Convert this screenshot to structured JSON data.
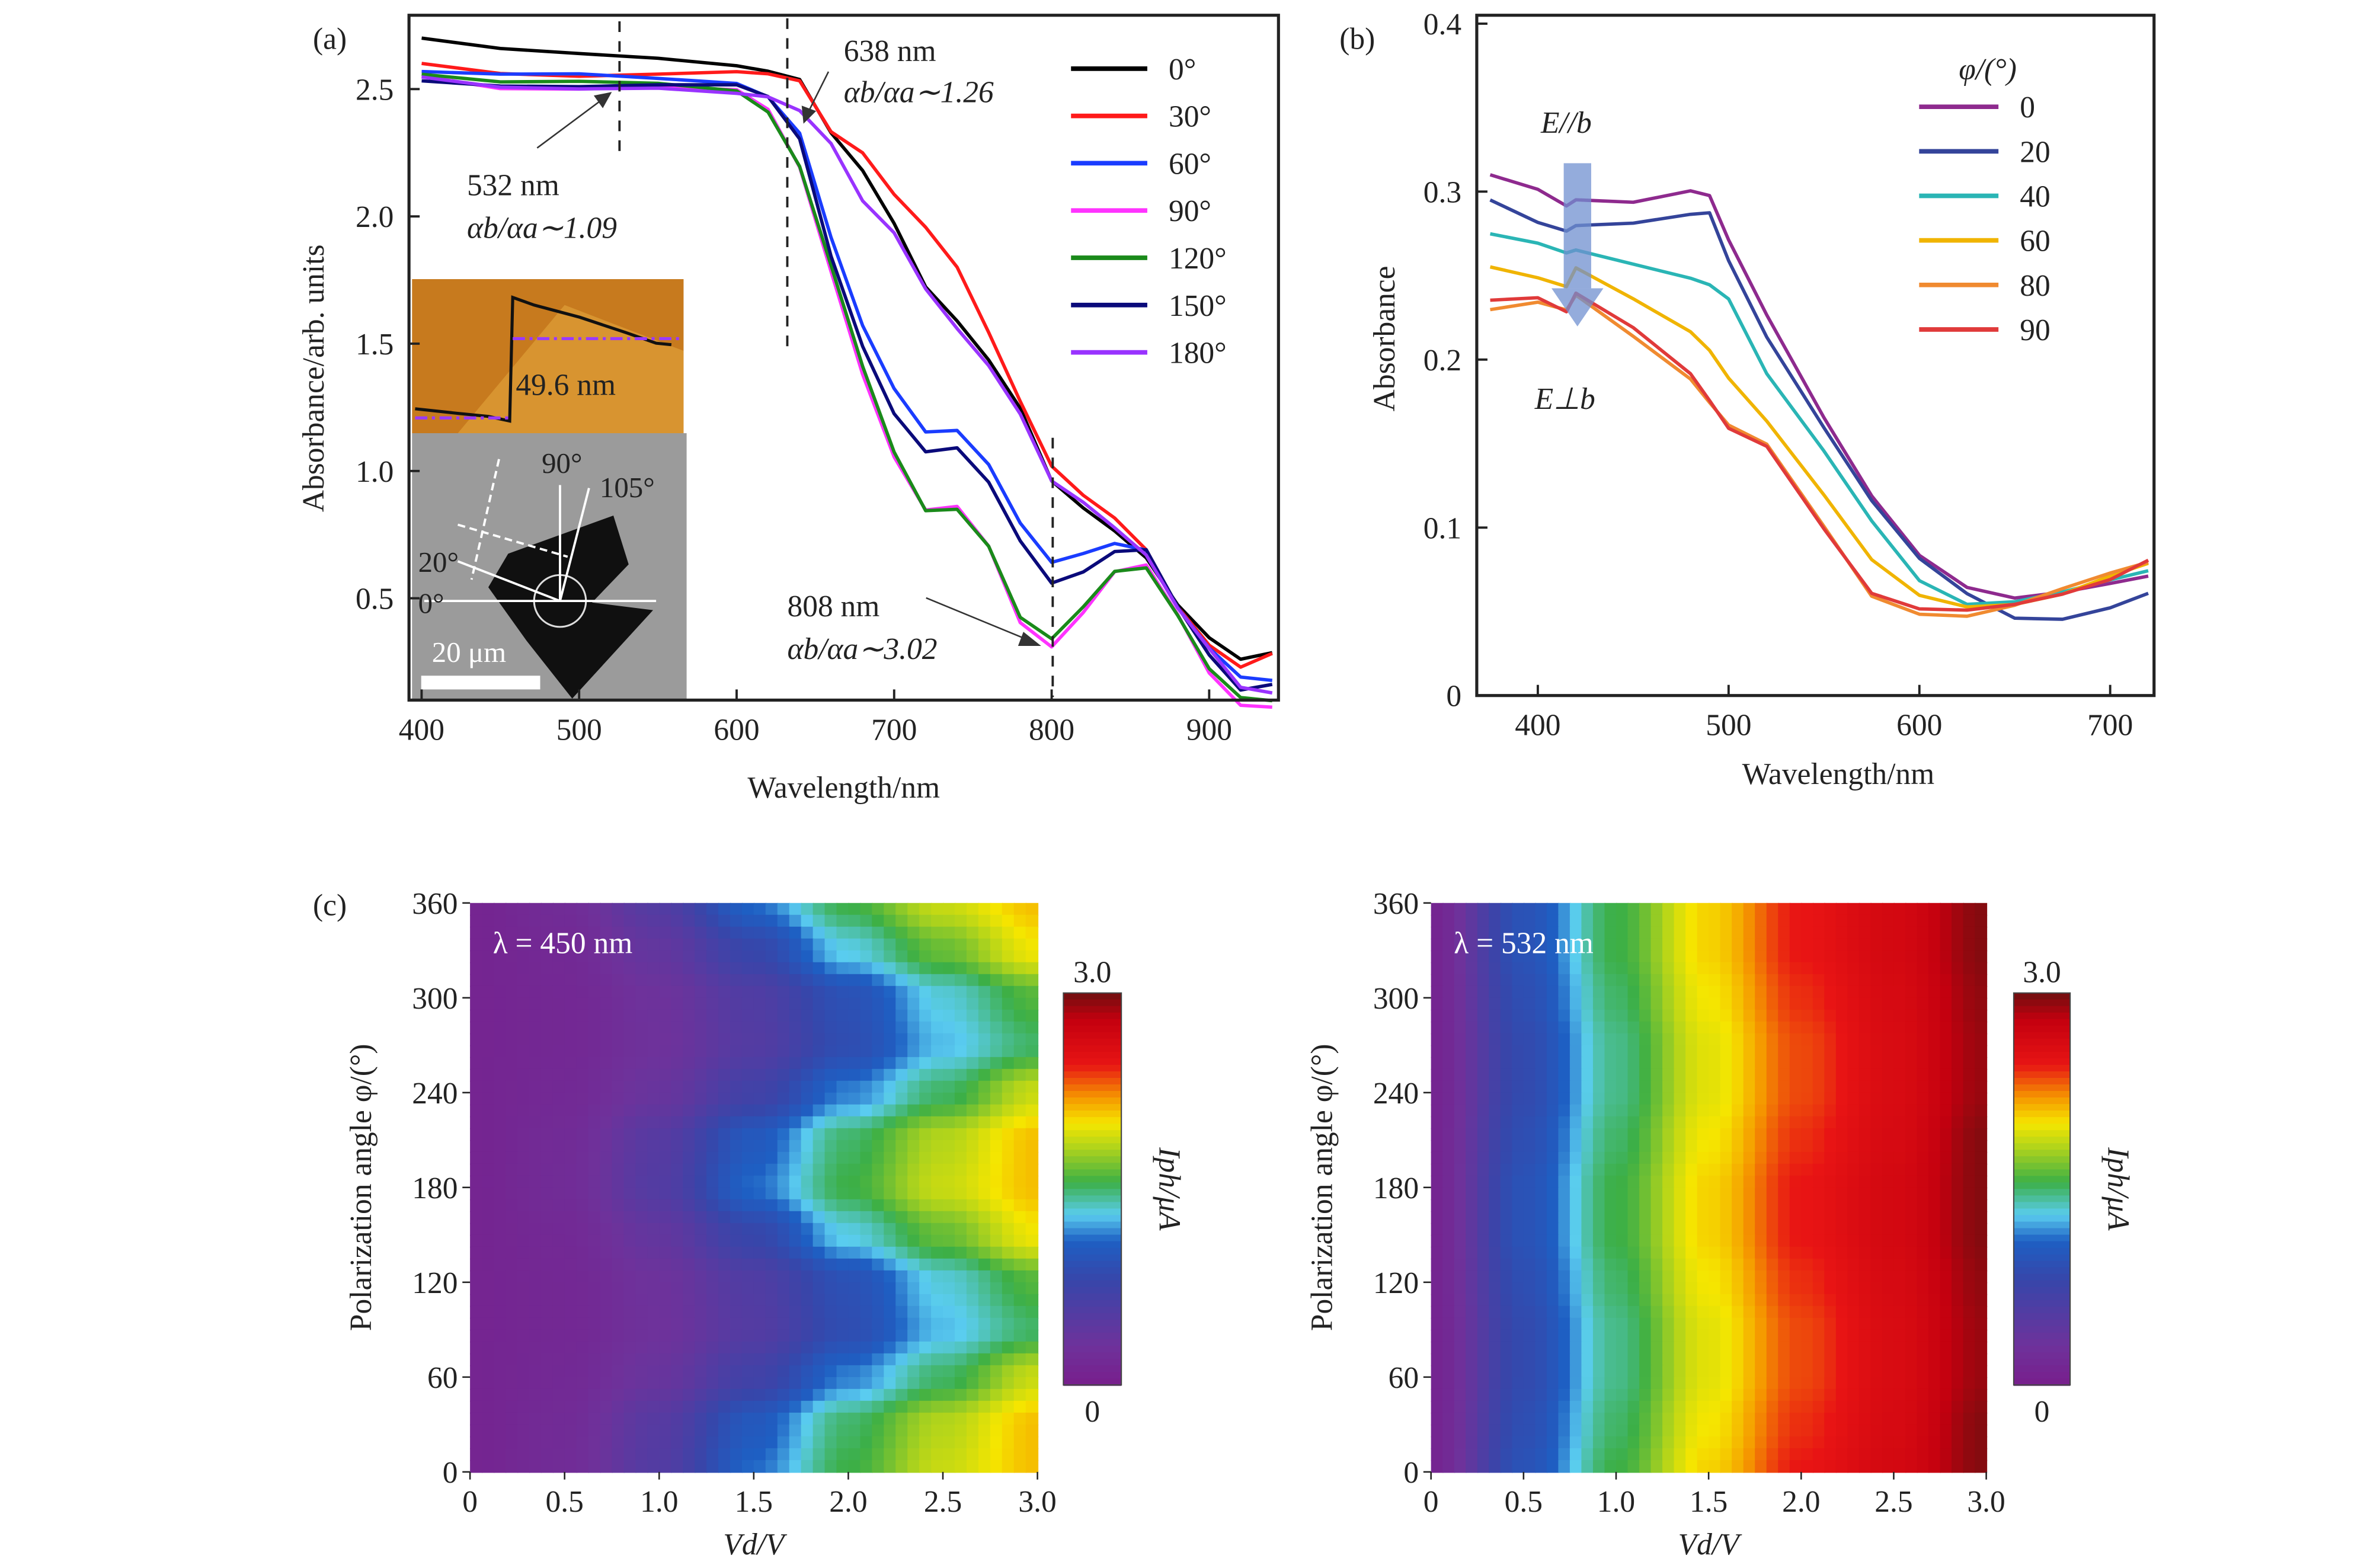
{
  "chart_data": [
    {
      "panel_label": "(a)",
      "type": "line",
      "xlabel": "Wavelength/nm",
      "ylabel": "Absorbance/arb. units",
      "xlim": [
        392,
        944
      ],
      "ylim": [
        0.1,
        2.79
      ],
      "xticks": [
        400,
        500,
        600,
        700,
        800,
        900
      ],
      "yticks": [
        0.5,
        1.0,
        1.5,
        2.0,
        2.5
      ],
      "ytick_labels": [
        "0.5",
        "1.0",
        "1.5",
        "2.0",
        "2.5"
      ],
      "legend_placement": "top-right",
      "x": [
        400,
        450,
        500,
        550,
        600,
        620,
        640,
        660,
        680,
        700,
        720,
        740,
        760,
        780,
        800,
        820,
        840,
        860,
        880,
        900,
        920,
        940
      ],
      "series": [
        {
          "name": "0°",
          "color": "#000000",
          "values": [
            2.7,
            2.65,
            2.63,
            2.62,
            2.6,
            2.58,
            2.54,
            2.32,
            2.17,
            1.97,
            1.73,
            1.6,
            1.44,
            1.24,
            0.95,
            0.85,
            0.77,
            0.67,
            0.48,
            0.34,
            0.25,
            0.28
          ]
        },
        {
          "name": "30°",
          "color": "#ff1a1a",
          "values": [
            2.6,
            2.57,
            2.56,
            2.56,
            2.56,
            2.55,
            2.53,
            2.34,
            2.26,
            2.09,
            1.95,
            1.79,
            1.54,
            1.28,
            1.03,
            0.91,
            0.81,
            0.68,
            0.46,
            0.32,
            0.24,
            0.29
          ]
        },
        {
          "name": "60°",
          "color": "#1a3cff",
          "values": [
            2.57,
            2.55,
            2.55,
            2.54,
            2.53,
            2.48,
            2.33,
            1.91,
            1.56,
            1.32,
            1.16,
            1.17,
            1.03,
            0.79,
            0.63,
            0.67,
            0.72,
            0.7,
            0.47,
            0.3,
            0.18,
            0.17
          ]
        },
        {
          "name": "90°",
          "color": "#ff33ff",
          "values": [
            2.55,
            2.51,
            2.51,
            2.51,
            2.49,
            2.41,
            2.19,
            1.79,
            1.39,
            1.06,
            0.84,
            0.85,
            0.7,
            0.41,
            0.32,
            0.45,
            0.6,
            0.62,
            0.43,
            0.21,
            0.09,
            0.08
          ]
        },
        {
          "name": "120°",
          "color": "#1a8a1a",
          "values": [
            2.56,
            2.52,
            2.52,
            2.52,
            2.5,
            2.42,
            2.2,
            1.8,
            1.4,
            1.07,
            0.85,
            0.86,
            0.71,
            0.42,
            0.33,
            0.46,
            0.61,
            0.63,
            0.44,
            0.22,
            0.1,
            0.09
          ]
        },
        {
          "name": "150°",
          "color": "#0a0a7a",
          "values": [
            2.53,
            2.52,
            2.52,
            2.52,
            2.51,
            2.46,
            2.3,
            1.85,
            1.5,
            1.23,
            1.07,
            1.08,
            0.95,
            0.73,
            0.57,
            0.61,
            0.68,
            0.68,
            0.46,
            0.28,
            0.15,
            0.17
          ]
        },
        {
          "name": "180°",
          "color": "#9933ff",
          "values": [
            2.55,
            2.5,
            2.49,
            2.5,
            2.49,
            2.48,
            2.42,
            2.28,
            2.05,
            1.93,
            1.72,
            1.57,
            1.42,
            1.22,
            0.95,
            0.87,
            0.78,
            0.68,
            0.47,
            0.3,
            0.14,
            0.12
          ]
        }
      ],
      "annotations": [
        {
          "line1": "638 nm",
          "line2": "αb/αa∼1.26",
          "marker_x": 638
        },
        {
          "line1": "532 nm",
          "line2": "αb/αa∼1.09",
          "marker_x": 532
        },
        {
          "line1": "808 nm",
          "line2": "αb/αa∼3.02",
          "marker_x": 808
        }
      ],
      "inset": {
        "afm_label": "49.6 nm",
        "angle_labels": [
          "90°",
          "105°",
          "20°",
          "0°"
        ],
        "scale_bar_label": "20 μm"
      }
    },
    {
      "panel_label": "(b)",
      "type": "line",
      "xlabel": "Wavelength/nm",
      "ylabel": "Absorbance",
      "xlim": [
        368,
        723
      ],
      "ylim": [
        0,
        0.405
      ],
      "xticks": [
        400,
        500,
        600,
        700
      ],
      "yticks": [
        0,
        0.1,
        0.2,
        0.3,
        0.4
      ],
      "ytick_labels": [
        "0",
        "0.1",
        "0.2",
        "0.3",
        "0.4"
      ],
      "legend_title": "φ/(°)",
      "legend_placement": "top-right",
      "x": [
        375,
        400,
        415,
        420,
        450,
        480,
        490,
        500,
        520,
        550,
        575,
        600,
        625,
        650,
        675,
        700,
        720
      ],
      "series": [
        {
          "name": "0",
          "color": "#8e2a8e",
          "values": [
            0.31,
            0.3,
            0.29,
            0.295,
            0.295,
            0.302,
            0.298,
            0.27,
            0.225,
            0.165,
            0.12,
            0.085,
            0.065,
            0.057,
            0.06,
            0.066,
            0.072
          ]
        },
        {
          "name": "20",
          "color": "#34449a",
          "values": [
            0.295,
            0.283,
            0.278,
            0.28,
            0.28,
            0.285,
            0.287,
            0.26,
            0.215,
            0.16,
            0.115,
            0.08,
            0.06,
            0.047,
            0.047,
            0.053,
            0.06
          ]
        },
        {
          "name": "40",
          "color": "#2ab5b5",
          "values": [
            0.275,
            0.268,
            0.262,
            0.265,
            0.258,
            0.25,
            0.245,
            0.235,
            0.19,
            0.145,
            0.105,
            0.07,
            0.055,
            0.055,
            0.06,
            0.068,
            0.075
          ]
        },
        {
          "name": "60",
          "color": "#f0b400",
          "values": [
            0.255,
            0.25,
            0.245,
            0.255,
            0.235,
            0.215,
            0.205,
            0.19,
            0.165,
            0.12,
            0.08,
            0.058,
            0.052,
            0.055,
            0.062,
            0.072,
            0.078
          ]
        },
        {
          "name": "80",
          "color": "#f08a30",
          "values": [
            0.23,
            0.233,
            0.228,
            0.238,
            0.215,
            0.19,
            0.175,
            0.16,
            0.148,
            0.1,
            0.06,
            0.05,
            0.048,
            0.053,
            0.062,
            0.072,
            0.08
          ]
        },
        {
          "name": "90",
          "color": "#e03a3a",
          "values": [
            0.235,
            0.238,
            0.23,
            0.24,
            0.218,
            0.19,
            0.175,
            0.16,
            0.15,
            0.1,
            0.06,
            0.05,
            0.05,
            0.055,
            0.062,
            0.07,
            0.08
          ]
        }
      ],
      "annotations": {
        "top": "E//b",
        "bottom": "E⊥b"
      },
      "arrow_color": "#7090d0"
    },
    {
      "panel_label": "(c)",
      "type": "heatmap",
      "title": "λ = 450 nm",
      "xlabel": "Vd/V",
      "ylabel": "Polarization angle φ/(°)",
      "x": [
        0,
        0.5,
        1.0,
        1.5,
        2.0,
        2.5,
        3.0
      ],
      "y": [
        0,
        30,
        60,
        90,
        120,
        150,
        180,
        210,
        240,
        270,
        300,
        330,
        360
      ],
      "xtick_labels": [
        "0",
        "0.5",
        "1.0",
        "1.5",
        "2.0",
        "2.5",
        "3.0"
      ],
      "yticks": [
        0,
        60,
        120,
        180,
        240,
        300,
        360
      ],
      "colorbar": {
        "label": "Iph/μA",
        "min": 0,
        "max": 3.0,
        "min_label": "0",
        "max_label": "3.0"
      },
      "values": [
        [
          0.1,
          0.21,
          0.55,
          1.12,
          1.55,
          1.88,
          2.1
        ],
        [
          0.1,
          0.2,
          0.52,
          1.03,
          1.5,
          1.83,
          2.1
        ],
        [
          0.1,
          0.17,
          0.36,
          0.7,
          1.16,
          1.5,
          1.88
        ],
        [
          0.1,
          0.15,
          0.3,
          0.54,
          0.89,
          1.27,
          1.5
        ],
        [
          0.1,
          0.15,
          0.31,
          0.57,
          0.93,
          1.33,
          1.6
        ],
        [
          0.1,
          0.17,
          0.41,
          0.8,
          1.32,
          1.65,
          1.99
        ],
        [
          0.1,
          0.21,
          0.55,
          1.12,
          1.55,
          1.88,
          2.1
        ],
        [
          0.1,
          0.2,
          0.52,
          1.03,
          1.5,
          1.83,
          2.1
        ],
        [
          0.1,
          0.17,
          0.36,
          0.7,
          1.16,
          1.5,
          1.88
        ],
        [
          0.1,
          0.15,
          0.3,
          0.54,
          0.89,
          1.27,
          1.5
        ],
        [
          0.1,
          0.15,
          0.31,
          0.57,
          0.93,
          1.33,
          1.6
        ],
        [
          0.1,
          0.17,
          0.41,
          0.8,
          1.32,
          1.65,
          1.99
        ],
        [
          0.1,
          0.21,
          0.55,
          1.12,
          1.55,
          1.88,
          2.1
        ]
      ]
    },
    {
      "type": "heatmap",
      "title": "λ = 532 nm",
      "xlabel": "Vd/V",
      "ylabel": "Polarization angle φ/(°)",
      "x": [
        0,
        0.5,
        1.0,
        1.5,
        2.0,
        2.5,
        3.0
      ],
      "y": [
        0,
        30,
        60,
        90,
        120,
        150,
        180,
        210,
        240,
        270,
        300,
        330,
        360
      ],
      "xtick_labels": [
        "0",
        "0.5",
        "1.0",
        "1.5",
        "2.0",
        "2.5",
        "3.0"
      ],
      "yticks": [
        0,
        60,
        120,
        180,
        240,
        300,
        360
      ],
      "colorbar": {
        "label": "Iph/μA",
        "min": 0,
        "max": 3.0,
        "min_label": "0",
        "max_label": "3.0"
      },
      "values": [
        [
          0.1,
          0.95,
          1.55,
          2.05,
          2.45,
          2.65,
          2.95
        ],
        [
          0.1,
          0.9,
          1.5,
          2.0,
          2.4,
          2.62,
          2.95
        ],
        [
          0.1,
          0.85,
          1.45,
          1.95,
          2.35,
          2.6,
          2.9
        ],
        [
          0.1,
          0.85,
          1.45,
          1.95,
          2.35,
          2.6,
          2.9
        ],
        [
          0.1,
          0.9,
          1.5,
          2.0,
          2.4,
          2.62,
          2.92
        ],
        [
          0.1,
          0.95,
          1.55,
          2.05,
          2.45,
          2.65,
          2.95
        ],
        [
          0.1,
          0.95,
          1.55,
          2.05,
          2.45,
          2.65,
          2.95
        ],
        [
          0.1,
          0.9,
          1.5,
          2.0,
          2.4,
          2.62,
          2.95
        ],
        [
          0.1,
          0.85,
          1.45,
          1.95,
          2.35,
          2.6,
          2.9
        ],
        [
          0.1,
          0.85,
          1.45,
          1.95,
          2.35,
          2.6,
          2.9
        ],
        [
          0.1,
          0.9,
          1.5,
          2.0,
          2.4,
          2.62,
          2.92
        ],
        [
          0.1,
          0.95,
          1.55,
          2.05,
          2.45,
          2.65,
          2.95
        ],
        [
          0.1,
          0.95,
          1.55,
          2.05,
          2.45,
          2.65,
          2.95
        ]
      ]
    }
  ]
}
